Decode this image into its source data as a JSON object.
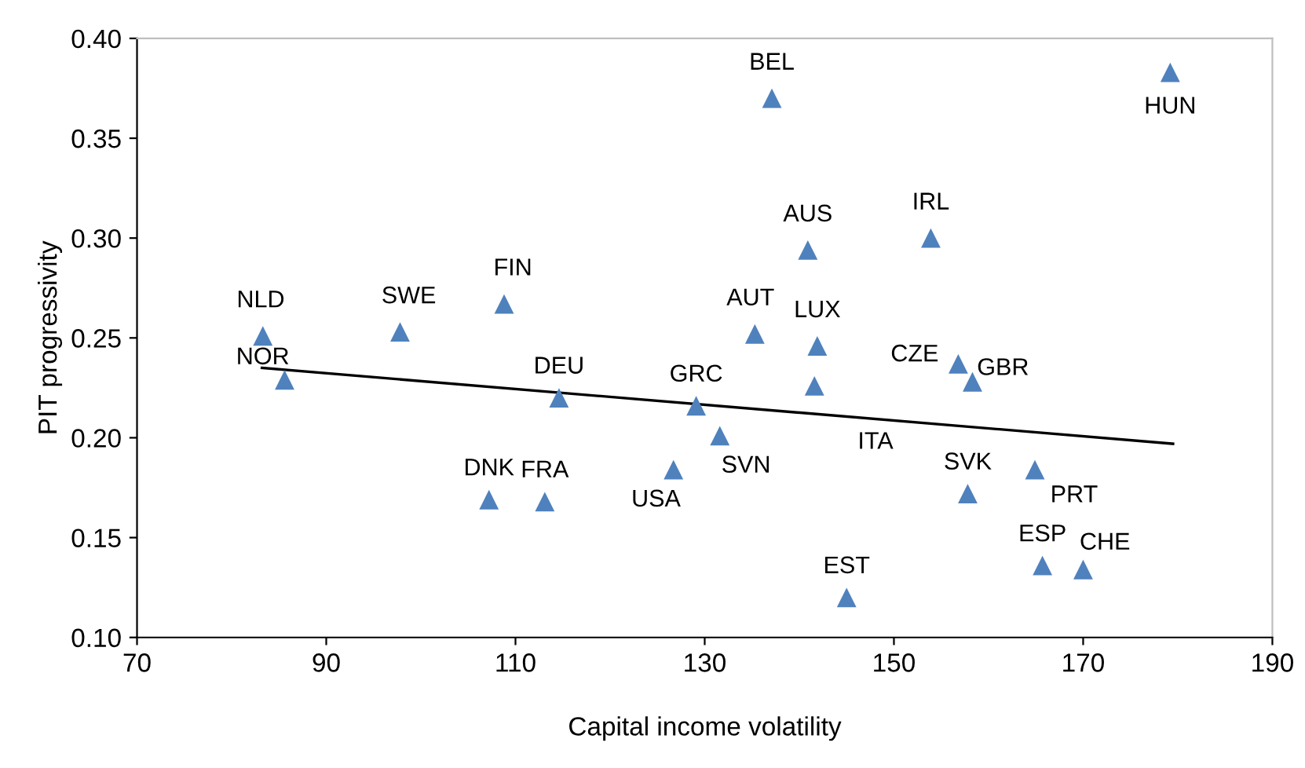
{
  "chart_data": {
    "type": "scatter",
    "xlabel": "Capital income volatility",
    "ylabel": "PIT progressivity",
    "xlim": [
      70,
      190
    ],
    "xticks": [
      70,
      90,
      110,
      130,
      150,
      170,
      190
    ],
    "ylim": [
      0.1,
      0.4
    ],
    "yticks": [
      {
        "value": 0.1,
        "label": "0.10"
      },
      {
        "value": 0.15,
        "label": "0.15"
      },
      {
        "value": 0.2,
        "label": "0.20"
      },
      {
        "value": 0.25,
        "label": "0.25"
      },
      {
        "value": 0.3,
        "label": "0.30"
      },
      {
        "value": 0.35,
        "label": "0.35"
      },
      {
        "value": 0.4,
        "label": "0.40"
      }
    ],
    "grid": false,
    "legend": false,
    "marker": "triangle",
    "series": [
      {
        "color": "#4f81bd",
        "x": [
          83.3,
          85.6,
          97.8,
          108.8,
          114.6,
          107.2,
          113.1,
          126.7,
          129.1,
          131.6,
          135.3,
          137.1,
          140.9,
          141.9,
          141.6,
          145.0,
          153.9,
          156.8,
          158.3,
          157.8,
          164.9,
          165.7,
          170.0,
          179.2
        ],
        "values": [
          0.251,
          0.229,
          0.253,
          0.267,
          0.22,
          0.169,
          0.168,
          0.184,
          0.216,
          0.201,
          0.252,
          0.37,
          0.294,
          0.246,
          0.226,
          0.12,
          0.3,
          0.237,
          0.228,
          0.172,
          0.184,
          0.136,
          0.134,
          0.383
        ]
      },
      {
        "type": "line",
        "color": "#000000",
        "marker": "none",
        "line_style": "solid",
        "x": [
          83.2,
          179.5
        ],
        "values": [
          0.235,
          0.197
        ]
      }
    ],
    "annotations": [
      {
        "text": "NLD",
        "x": 83.3,
        "y": 0.251
      },
      {
        "text": "NOR",
        "x": 85.6,
        "y": 0.229
      },
      {
        "text": "SWE",
        "x": 97.8,
        "y": 0.253
      },
      {
        "text": "FIN",
        "x": 108.8,
        "y": 0.267
      },
      {
        "text": "DEU",
        "x": 114.6,
        "y": 0.22
      },
      {
        "text": "DNK",
        "x": 107.2,
        "y": 0.169
      },
      {
        "text": "FRA",
        "x": 113.1,
        "y": 0.168
      },
      {
        "text": "USA",
        "x": 126.7,
        "y": 0.184
      },
      {
        "text": "GRC",
        "x": 129.1,
        "y": 0.216
      },
      {
        "text": "SVN",
        "x": 131.6,
        "y": 0.201
      },
      {
        "text": "AUT",
        "x": 135.3,
        "y": 0.252
      },
      {
        "text": "BEL",
        "x": 137.1,
        "y": 0.37
      },
      {
        "text": "AUS",
        "x": 140.9,
        "y": 0.294
      },
      {
        "text": "LUX",
        "x": 141.9,
        "y": 0.246
      },
      {
        "text": "ITA",
        "x": 141.6,
        "y": 0.226
      },
      {
        "text": "EST",
        "x": 145.0,
        "y": 0.12
      },
      {
        "text": "IRL",
        "x": 153.9,
        "y": 0.3
      },
      {
        "text": "CZE",
        "x": 156.8,
        "y": 0.237
      },
      {
        "text": "GBR",
        "x": 158.3,
        "y": 0.228
      },
      {
        "text": "SVK",
        "x": 157.8,
        "y": 0.172
      },
      {
        "text": "PRT",
        "x": 164.9,
        "y": 0.184
      },
      {
        "text": "ESP",
        "x": 165.7,
        "y": 0.136
      },
      {
        "text": "CHE",
        "x": 170.0,
        "y": 0.134
      },
      {
        "text": "HUN",
        "x": 179.2,
        "y": 0.383
      }
    ]
  }
}
